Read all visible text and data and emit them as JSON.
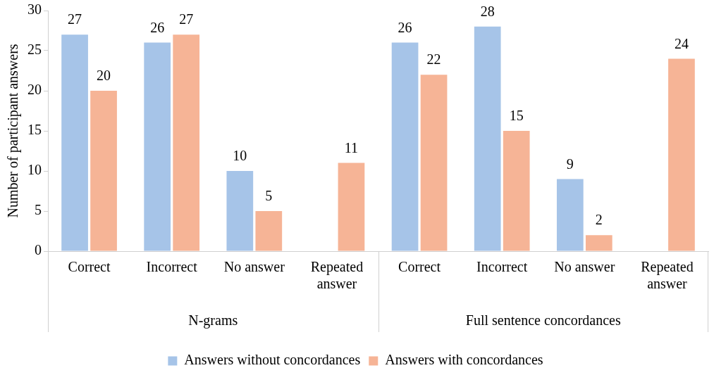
{
  "chart_data": {
    "type": "bar",
    "ylabel": "Number of participant answers",
    "categories": [
      "Correct",
      "Incorrect",
      "No answer",
      "Repeated answer",
      "Correct",
      "Incorrect",
      "No answer",
      "Repeated answer"
    ],
    "series": [
      {
        "name": "Answers without concordances",
        "color": "#a6c4e8",
        "values": [
          27,
          26,
          10,
          null,
          26,
          28,
          9,
          null
        ]
      },
      {
        "name": "Answers with concordances",
        "color": "#f6b496",
        "values": [
          20,
          27,
          5,
          11,
          22,
          15,
          2,
          24
        ]
      }
    ],
    "annotations": [
      "N-grams",
      "Full sentence concordances"
    ],
    "ylim": [
      0,
      30
    ],
    "yticks": [
      0,
      5,
      10,
      15,
      20,
      25,
      30
    ],
    "grid": false,
    "legend": "bottom",
    "data_labels": true
  }
}
